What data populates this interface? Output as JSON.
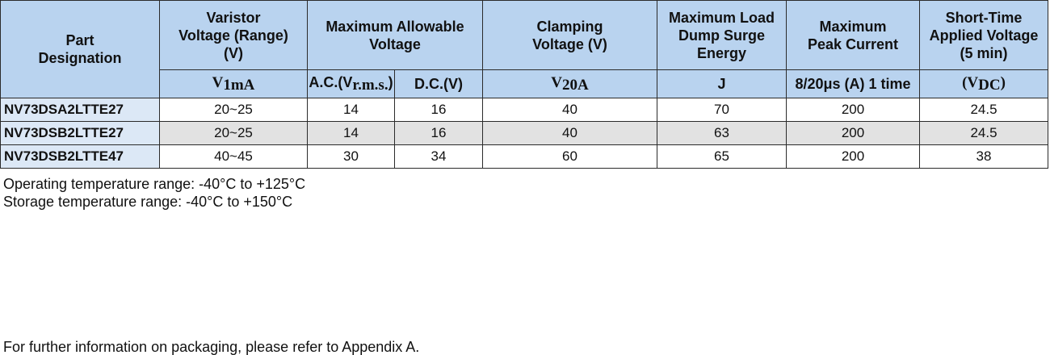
{
  "table": {
    "header": [
      [
        "Part",
        "Designation"
      ],
      [
        "Varistor",
        "Voltage (Range)",
        "(V)"
      ],
      [
        "Maximum Allowable",
        "Voltage"
      ],
      [
        "Clamping",
        "Voltage (V)"
      ],
      [
        "Maximum Load",
        "Dump Surge",
        "Energy"
      ],
      [
        "Maximum",
        "Peak Current"
      ],
      [
        "Short-Time",
        "Applied Voltage",
        "(5 min)"
      ]
    ],
    "units": [
      [
        "V",
        "1mA"
      ],
      [
        "A.C.(V",
        "r.m.s.",
        ")"
      ],
      [
        "D.C.(V)"
      ],
      [
        "V",
        "20A"
      ],
      [
        "J"
      ],
      [
        "8/20μs (A) 1 time"
      ],
      [
        "(V",
        "DC",
        ")"
      ]
    ],
    "rows": [
      [
        "NV73DSA2LTTE27",
        "20~25",
        14,
        16,
        40,
        70,
        200,
        24.5
      ],
      [
        "NV73DSB2LTTE27",
        "20~25",
        14,
        16,
        40,
        63,
        200,
        24.5
      ],
      [
        "NV73DSB2LTTE47",
        "40~45",
        30,
        34,
        60,
        65,
        200,
        38
      ]
    ]
  },
  "notes": [
    "Operating temperature range: -40°C to +125°C",
    "Storage temperature range: -40°C to +150°C",
    "For further information on packaging, please refer to Appendix A."
  ]
}
